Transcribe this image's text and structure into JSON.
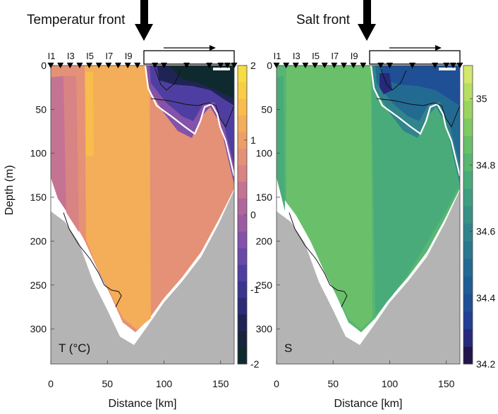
{
  "chart_data": [
    {
      "type": "heatmap",
      "title": "Temperatur front",
      "panel_label": "T (°C)",
      "xlabel": "Distance [km]",
      "ylabel": "Depth (m)",
      "xlim": [
        0,
        162
      ],
      "ylim": [
        340,
        0
      ],
      "x_ticks": [
        0,
        50,
        100,
        150
      ],
      "y_ticks": [
        0,
        50,
        100,
        150,
        200,
        250,
        300
      ],
      "stations": [
        "I1",
        "I3",
        "I5",
        "I7",
        "I9"
      ],
      "colorbar": {
        "min": -2,
        "max": 2,
        "ticks": [
          -2,
          -1,
          0,
          1,
          2
        ],
        "tick_labels": [
          "-2",
          "-1",
          "0",
          "1",
          "2"
        ],
        "colors": [
          "#0f2a2e",
          "#16243c",
          "#1f2455",
          "#2c2c76",
          "#3a3591",
          "#4f3ea2",
          "#6a48a8",
          "#8452a8",
          "#9c5ca3",
          "#b0669c",
          "#c57392",
          "#d88384",
          "#e49177",
          "#ee9f68",
          "#f4ad58",
          "#f8bd4c",
          "#f9cd45",
          "#f7dc44"
        ]
      },
      "front_position_km": 83
    },
    {
      "type": "heatmap",
      "title": "Salt front",
      "panel_label": "S",
      "xlabel": "Distance [km]",
      "ylabel": "",
      "xlim": [
        0,
        162
      ],
      "ylim": [
        340,
        0
      ],
      "x_ticks": [
        0,
        50,
        100,
        150
      ],
      "y_ticks": [
        0,
        50,
        100,
        150,
        200,
        250,
        300
      ],
      "stations": [
        "I1",
        "I3",
        "I5",
        "I7",
        "I9"
      ],
      "colorbar": {
        "min": 34.2,
        "max": 35.1,
        "ticks": [
          34.2,
          34.4,
          34.6,
          34.8,
          35
        ],
        "tick_labels": [
          "34.2",
          "34.4",
          "34.6",
          "34.8",
          "35"
        ],
        "colors": [
          "#22154a",
          "#262a7a",
          "#233e93",
          "#1f4f95",
          "#1f5d94",
          "#236a92",
          "#2a778f",
          "#31848b",
          "#389186",
          "#3f9e80",
          "#4aab7a",
          "#58b672",
          "#6ac06a",
          "#80ca63",
          "#9ad45f",
          "#b6de63",
          "#d2e76c"
        ]
      },
      "front_position_km": 78
    }
  ]
}
